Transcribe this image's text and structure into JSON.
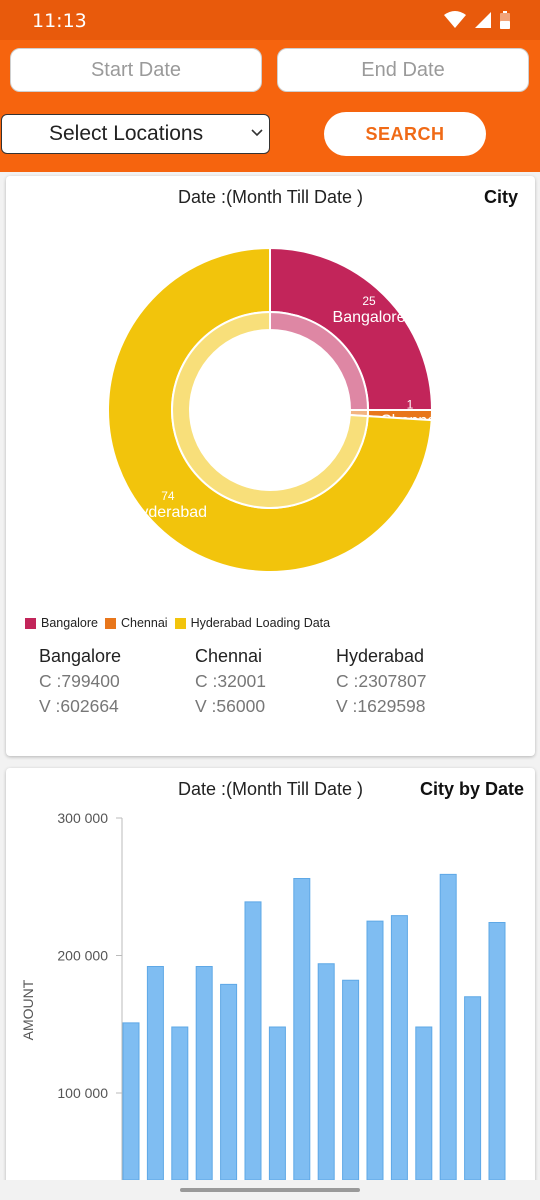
{
  "status_bar": {
    "time": "11:13",
    "icons": [
      "wifi-icon",
      "signal-icon",
      "battery-icon"
    ]
  },
  "filters": {
    "start_date_placeholder": "Start Date",
    "end_date_placeholder": "End Date",
    "location_select": "Select Locations",
    "search_label": "SEARCH"
  },
  "colors": {
    "header": "#f6640e",
    "bangalore": "#c2255a",
    "chennai": "#e8761b",
    "hyderabad": "#f2c40c",
    "bar": "#7fbdf2"
  },
  "city_card": {
    "date_label": "Date :(Month Till Date )",
    "title": "City",
    "loading_label": "Loading Data",
    "legend": [
      "Bangalore",
      "Chennai",
      "Hyderabad"
    ],
    "stats": [
      {
        "city": "Bangalore",
        "c": "C :799400",
        "v": "V :602664"
      },
      {
        "city": "Chennai",
        "c": "C :32001",
        "v": "V :56000"
      },
      {
        "city": "Hyderabad",
        "c": "C :2307807",
        "v": "V :1629598"
      }
    ]
  },
  "date_card": {
    "date_label": "Date :(Month Till Date )",
    "title": "City by Date"
  },
  "chart_data": [
    {
      "type": "pie",
      "categories": [
        "Bangalore",
        "Chennai",
        "Hyderabad"
      ],
      "values": [
        25,
        1,
        74
      ],
      "legend_position": "bottom-left"
    },
    {
      "type": "bar",
      "ylabel": "AMOUNT",
      "ylim": [
        60000,
        300000
      ],
      "y_ticks": [
        "100 000",
        "200 000",
        "300 000"
      ],
      "y_tick_values": [
        100000,
        200000,
        300000
      ],
      "values": [
        151000,
        192000,
        148000,
        192000,
        179000,
        239000,
        148000,
        256000,
        194000,
        182000,
        225000,
        229000,
        148000,
        259000,
        170000,
        224000
      ],
      "grid": false
    }
  ]
}
